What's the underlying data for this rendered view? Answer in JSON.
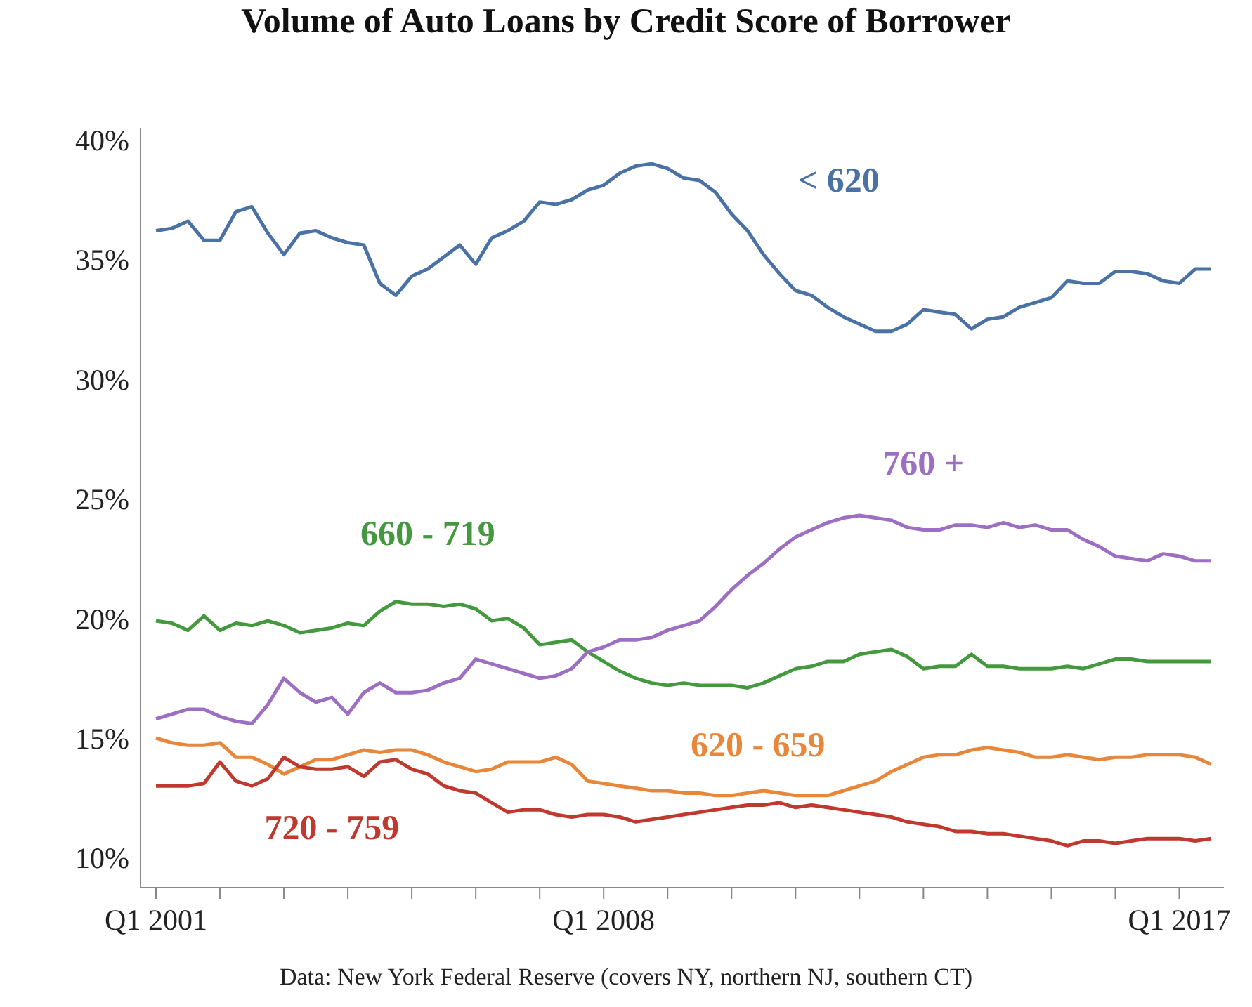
{
  "chart_data": {
    "type": "line",
    "title": "Volume of Auto Loans by Credit Score of Borrower",
    "categories": [
      "Q1 2001",
      null,
      null,
      null,
      null,
      null,
      null,
      null,
      null,
      null,
      null,
      null,
      null,
      null,
      null,
      null,
      null,
      null,
      null,
      null,
      null,
      null,
      null,
      null,
      null,
      null,
      null,
      null,
      "Q1 2008",
      null,
      null,
      null,
      null,
      null,
      null,
      null,
      null,
      null,
      null,
      null,
      null,
      null,
      null,
      null,
      null,
      null,
      null,
      null,
      null,
      null,
      null,
      null,
      null,
      null,
      null,
      null,
      null,
      null,
      null,
      null,
      null,
      null,
      null,
      null,
      "Q1 2017",
      null,
      null
    ],
    "series": [
      {
        "name": "< 620",
        "color": "#4a72a4",
        "values": [
          36.2,
          36.3,
          36.6,
          35.8,
          35.8,
          37.0,
          37.2,
          36.1,
          35.2,
          36.1,
          36.2,
          35.9,
          35.7,
          35.6,
          34.0,
          33.5,
          34.3,
          34.6,
          35.1,
          35.6,
          34.8,
          35.9,
          36.2,
          36.6,
          37.4,
          37.3,
          37.5,
          37.9,
          38.1,
          38.6,
          38.9,
          39.0,
          38.8,
          38.4,
          38.3,
          37.8,
          36.9,
          36.2,
          35.2,
          34.4,
          33.7,
          33.5,
          33.0,
          32.6,
          32.3,
          32.0,
          32.0,
          32.3,
          32.9,
          32.8,
          32.7,
          32.1,
          32.5,
          32.6,
          33.0,
          33.2,
          33.4,
          34.1,
          34.0,
          34.0,
          34.5,
          34.5,
          34.4,
          34.1,
          34.0,
          34.6,
          34.6
        ]
      },
      {
        "name": "660 - 719",
        "color": "#44993f",
        "values": [
          19.9,
          19.8,
          19.5,
          20.1,
          19.5,
          19.8,
          19.7,
          19.9,
          19.7,
          19.4,
          19.5,
          19.6,
          19.8,
          19.7,
          20.3,
          20.7,
          20.6,
          20.6,
          20.5,
          20.6,
          20.4,
          19.9,
          20.0,
          19.6,
          18.9,
          19.0,
          19.1,
          18.6,
          18.2,
          17.8,
          17.5,
          17.3,
          17.2,
          17.3,
          17.2,
          17.2,
          17.2,
          17.1,
          17.3,
          17.6,
          17.9,
          18.0,
          18.2,
          18.2,
          18.5,
          18.6,
          18.7,
          18.4,
          17.9,
          18.0,
          18.0,
          18.5,
          18.0,
          18.0,
          17.9,
          17.9,
          17.9,
          18.0,
          17.9,
          18.1,
          18.3,
          18.3,
          18.2,
          18.2,
          18.2,
          18.2,
          18.2
        ]
      },
      {
        "name": "760 +",
        "color": "#9c6fc2",
        "values": [
          15.8,
          16.0,
          16.2,
          16.2,
          15.9,
          15.7,
          15.6,
          16.4,
          17.5,
          16.9,
          16.5,
          16.7,
          16.0,
          16.9,
          17.3,
          16.9,
          16.9,
          17.0,
          17.3,
          17.5,
          18.3,
          18.1,
          17.9,
          17.7,
          17.5,
          17.6,
          17.9,
          18.6,
          18.8,
          19.1,
          19.1,
          19.2,
          19.5,
          19.7,
          19.9,
          20.5,
          21.2,
          21.8,
          22.3,
          22.9,
          23.4,
          23.7,
          24.0,
          24.2,
          24.3,
          24.2,
          24.1,
          23.8,
          23.7,
          23.7,
          23.9,
          23.9,
          23.8,
          24.0,
          23.8,
          23.9,
          23.7,
          23.7,
          23.3,
          23.0,
          22.6,
          22.5,
          22.4,
          22.7,
          22.6,
          22.4,
          22.4
        ]
      },
      {
        "name": "620 - 659",
        "color": "#e8873a",
        "values": [
          15.0,
          14.8,
          14.7,
          14.7,
          14.8,
          14.2,
          14.2,
          13.9,
          13.5,
          13.8,
          14.1,
          14.1,
          14.3,
          14.5,
          14.4,
          14.5,
          14.5,
          14.3,
          14.0,
          13.8,
          13.6,
          13.7,
          14.0,
          14.0,
          14.0,
          14.2,
          13.9,
          13.2,
          13.1,
          13.0,
          12.9,
          12.8,
          12.8,
          12.7,
          12.7,
          12.6,
          12.6,
          12.7,
          12.8,
          12.7,
          12.6,
          12.6,
          12.6,
          12.8,
          13.0,
          13.2,
          13.6,
          13.9,
          14.2,
          14.3,
          14.3,
          14.5,
          14.6,
          14.5,
          14.4,
          14.2,
          14.2,
          14.3,
          14.2,
          14.1,
          14.2,
          14.2,
          14.3,
          14.3,
          14.3,
          14.2,
          13.9
        ]
      },
      {
        "name": "720 - 759",
        "color": "#c0392e",
        "values": [
          13.0,
          13.0,
          13.0,
          13.1,
          14.0,
          13.2,
          13.0,
          13.3,
          14.2,
          13.8,
          13.7,
          13.7,
          13.8,
          13.4,
          14.0,
          14.1,
          13.7,
          13.5,
          13.0,
          12.8,
          12.7,
          12.3,
          11.9,
          12.0,
          12.0,
          11.8,
          11.7,
          11.8,
          11.8,
          11.7,
          11.5,
          11.6,
          11.7,
          11.8,
          11.9,
          12.0,
          12.1,
          12.2,
          12.2,
          12.3,
          12.1,
          12.2,
          12.1,
          12.0,
          11.9,
          11.8,
          11.7,
          11.5,
          11.4,
          11.3,
          11.1,
          11.1,
          11.0,
          11.0,
          10.9,
          10.8,
          10.7,
          10.5,
          10.7,
          10.7,
          10.6,
          10.7,
          10.8,
          10.8,
          10.8,
          10.7,
          10.8
        ]
      }
    ],
    "ylim": [
      8.75,
      40.5
    ],
    "yticks": [
      {
        "value": 10,
        "label": "10%"
      },
      {
        "value": 15,
        "label": "15%"
      },
      {
        "value": 20,
        "label": "20%"
      },
      {
        "value": 25,
        "label": "25%"
      },
      {
        "value": 30,
        "label": "30%"
      },
      {
        "value": 35,
        "label": "35%"
      },
      {
        "value": 40,
        "label": "40%"
      }
    ],
    "annotations": [
      "Data: New York Federal Reserve (covers NY, northern NJ, southern CT)"
    ],
    "legend": false,
    "grid": false
  }
}
